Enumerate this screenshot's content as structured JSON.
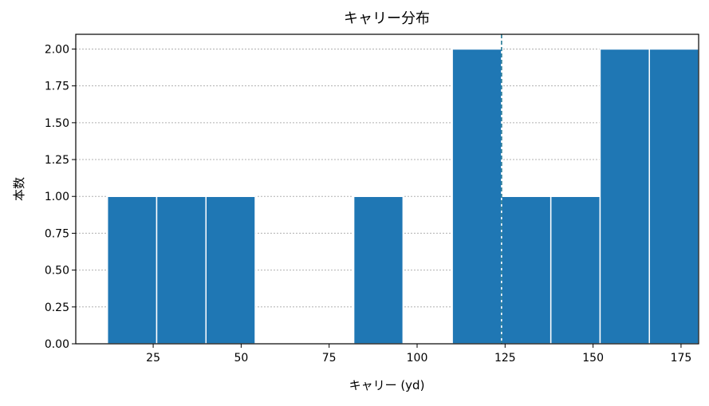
{
  "chart_data": {
    "type": "bar",
    "subtype": "histogram",
    "title": "キャリー分布",
    "xlabel": "キャリー (yd)",
    "ylabel": "本数",
    "xlim": [
      3,
      180
    ],
    "ylim": [
      0,
      2.1
    ],
    "x_ticks": [
      25,
      50,
      75,
      100,
      125,
      150,
      175
    ],
    "x_tick_labels": [
      "25",
      "50",
      "75",
      "100",
      "125",
      "150",
      "175"
    ],
    "y_ticks": [
      0,
      0.25,
      0.5,
      0.75,
      1.0,
      1.25,
      1.5,
      1.75,
      2.0
    ],
    "y_tick_labels": [
      "0.00",
      "0.25",
      "0.50",
      "0.75",
      "1.00",
      "1.25",
      "1.50",
      "1.75",
      "2.00"
    ],
    "bin_edges": [
      12,
      26,
      40,
      54,
      68,
      82,
      96,
      110,
      124,
      138,
      152,
      166,
      180
    ],
    "counts": [
      1,
      1,
      1,
      0,
      0,
      1,
      0,
      2,
      1,
      1,
      2,
      2
    ],
    "vline": 124,
    "bar_color": "#1f77b4",
    "vline_color": "#17708e",
    "grid": "y-dotted",
    "legend": "none"
  }
}
